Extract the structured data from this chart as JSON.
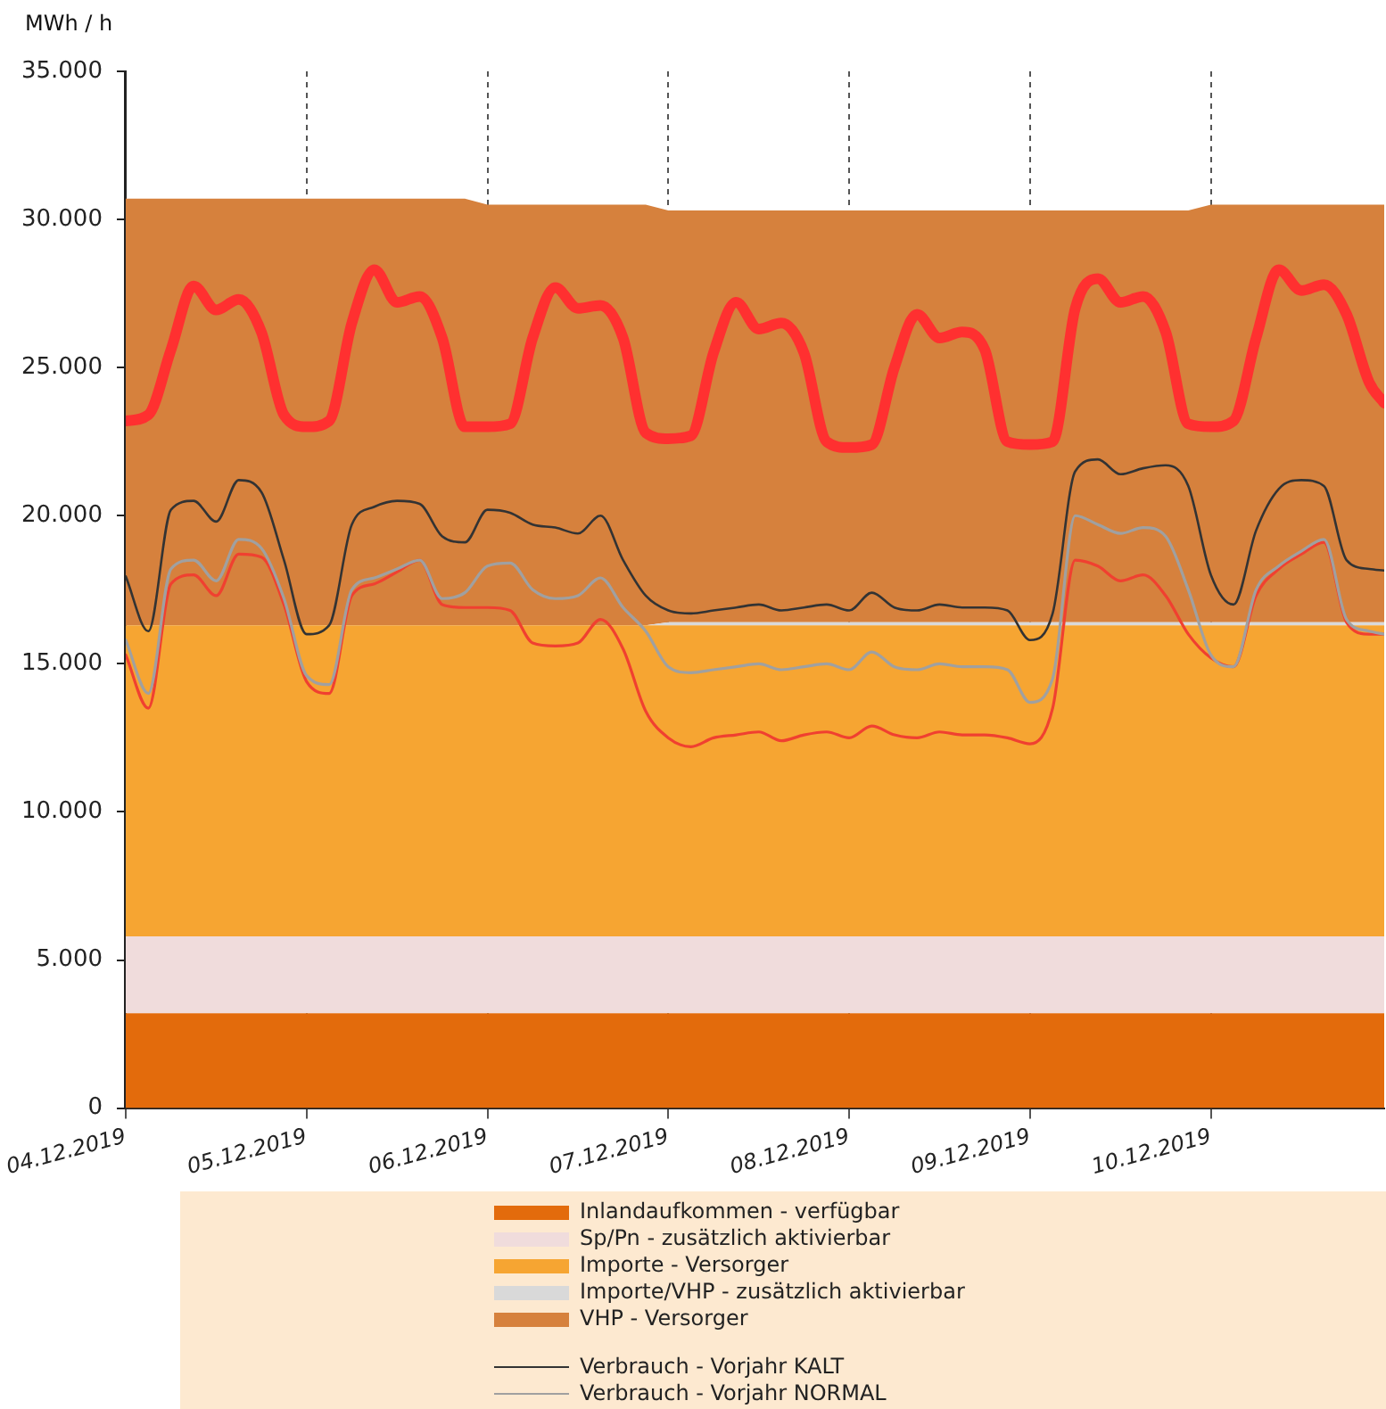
{
  "chart_data": {
    "type": "area",
    "ylabel": "MWh / h",
    "stacked": true,
    "grid": "x",
    "legend": "bottom",
    "x": [
      "2019-12-04T00:00",
      "2019-12-04T03:00",
      "2019-12-04T06:00",
      "2019-12-04T09:00",
      "2019-12-04T12:00",
      "2019-12-04T15:00",
      "2019-12-04T18:00",
      "2019-12-04T21:00",
      "2019-12-05T00:00",
      "2019-12-05T03:00",
      "2019-12-05T06:00",
      "2019-12-05T09:00",
      "2019-12-05T12:00",
      "2019-12-05T15:00",
      "2019-12-05T18:00",
      "2019-12-05T21:00",
      "2019-12-06T00:00",
      "2019-12-06T03:00",
      "2019-12-06T06:00",
      "2019-12-06T09:00",
      "2019-12-06T12:00",
      "2019-12-06T15:00",
      "2019-12-06T18:00",
      "2019-12-06T21:00",
      "2019-12-07T00:00",
      "2019-12-07T03:00",
      "2019-12-07T06:00",
      "2019-12-07T09:00",
      "2019-12-07T12:00",
      "2019-12-07T15:00",
      "2019-12-07T18:00",
      "2019-12-07T21:00",
      "2019-12-08T00:00",
      "2019-12-08T03:00",
      "2019-12-08T06:00",
      "2019-12-08T09:00",
      "2019-12-08T12:00",
      "2019-12-08T15:00",
      "2019-12-08T18:00",
      "2019-12-08T21:00",
      "2019-12-09T00:00",
      "2019-12-09T03:00",
      "2019-12-09T06:00",
      "2019-12-09T09:00",
      "2019-12-09T12:00",
      "2019-12-09T15:00",
      "2019-12-09T18:00",
      "2019-12-09T21:00",
      "2019-12-10T00:00",
      "2019-12-10T03:00",
      "2019-12-10T06:00",
      "2019-12-10T09:00",
      "2019-12-10T12:00",
      "2019-12-10T15:00",
      "2019-12-10T18:00",
      "2019-12-10T21:00",
      "2019-12-10T23:00"
    ],
    "xlim": [
      "2019-12-04T00:00",
      "2019-12-10T23:00"
    ],
    "xticks": [
      {
        "value": "2019-12-04T00:00",
        "label": "04.12.2019"
      },
      {
        "value": "2019-12-05T00:00",
        "label": "05.12.2019"
      },
      {
        "value": "2019-12-06T00:00",
        "label": "06.12.2019"
      },
      {
        "value": "2019-12-07T00:00",
        "label": "07.12.2019"
      },
      {
        "value": "2019-12-08T00:00",
        "label": "08.12.2019"
      },
      {
        "value": "2019-12-09T00:00",
        "label": "09.12.2019"
      },
      {
        "value": "2019-12-10T00:00",
        "label": "10.12.2019"
      }
    ],
    "ylim": [
      0,
      35000
    ],
    "yticks": [
      0,
      {
        "value": 5000,
        "label": "5.000"
      },
      {
        "value": 10000,
        "label": "10.000"
      },
      {
        "value": 15000,
        "label": "15.000"
      },
      {
        "value": 20000,
        "label": "20.000"
      },
      {
        "value": 25000,
        "label": "25.000"
      },
      {
        "value": 30000,
        "label": "30.000"
      },
      {
        "value": 35000,
        "label": "35.000"
      }
    ],
    "series": [
      {
        "name": "Inlandaufkommen - verfügbar",
        "color": "#e36b0c",
        "values": [
          3200,
          3200,
          3200,
          3200,
          3200,
          3200,
          3200,
          3200,
          3200,
          3200,
          3200,
          3200,
          3200,
          3200,
          3200,
          3200,
          3200,
          3200,
          3200,
          3200,
          3200,
          3200,
          3200,
          3200,
          3200,
          3200,
          3200,
          3200,
          3200,
          3200,
          3200,
          3200,
          3200,
          3200,
          3200,
          3200,
          3200,
          3200,
          3200,
          3200,
          3200,
          3200,
          3200,
          3200,
          3200,
          3200,
          3200,
          3200,
          3200,
          3200,
          3200,
          3200,
          3200,
          3200,
          3200,
          3200,
          3200
        ]
      },
      {
        "name": "Sp/Pn - zusätzlich aktivierbar",
        "color": "#f0dcdc",
        "values": [
          2600,
          2600,
          2600,
          2600,
          2600,
          2600,
          2600,
          2600,
          2600,
          2600,
          2600,
          2600,
          2600,
          2600,
          2600,
          2600,
          2600,
          2600,
          2600,
          2600,
          2600,
          2600,
          2600,
          2600,
          2600,
          2600,
          2600,
          2600,
          2600,
          2600,
          2600,
          2600,
          2600,
          2600,
          2600,
          2600,
          2600,
          2600,
          2600,
          2600,
          2600,
          2600,
          2600,
          2600,
          2600,
          2600,
          2600,
          2600,
          2600,
          2600,
          2600,
          2600,
          2600,
          2600,
          2600,
          2600,
          2600
        ]
      },
      {
        "name": "Importe - Versorger",
        "color": "#f6a532",
        "values": [
          10500,
          10500,
          10500,
          10500,
          10500,
          10500,
          10500,
          10500,
          10500,
          10500,
          10500,
          10500,
          10500,
          10500,
          10500,
          10500,
          10500,
          10500,
          10500,
          10500,
          10500,
          10500,
          10500,
          10500,
          10500,
          10500,
          10500,
          10500,
          10500,
          10500,
          10500,
          10500,
          10500,
          10500,
          10500,
          10500,
          10500,
          10500,
          10500,
          10500,
          10500,
          10500,
          10500,
          10500,
          10500,
          10500,
          10500,
          10500,
          10500,
          10500,
          10500,
          10500,
          10500,
          10500,
          10500,
          10500,
          10500
        ]
      },
      {
        "name": "Importe/VHP - zusätzlich aktivierbar",
        "color": "#d9d9d9",
        "values": [
          0,
          0,
          0,
          0,
          0,
          0,
          0,
          0,
          0,
          0,
          0,
          0,
          0,
          0,
          0,
          0,
          0,
          0,
          0,
          0,
          0,
          0,
          0,
          0,
          100,
          100,
          100,
          100,
          100,
          100,
          100,
          100,
          100,
          100,
          100,
          100,
          100,
          100,
          100,
          100,
          100,
          100,
          100,
          100,
          100,
          100,
          100,
          100,
          100,
          100,
          100,
          100,
          100,
          100,
          100,
          100,
          100
        ]
      },
      {
        "name": "VHP - Versorger",
        "color": "#d6813d",
        "values": [
          14400,
          14400,
          14400,
          14400,
          14400,
          14400,
          14400,
          14400,
          14400,
          14400,
          14400,
          14400,
          14400,
          14400,
          14400,
          14400,
          14200,
          14200,
          14200,
          14200,
          14200,
          14200,
          14200,
          14200,
          13900,
          13900,
          13900,
          13900,
          13900,
          13900,
          13900,
          13900,
          13900,
          13900,
          13900,
          13900,
          13900,
          13900,
          13900,
          13900,
          13900,
          13900,
          13900,
          13900,
          13900,
          13900,
          13900,
          13900,
          14100,
          14100,
          14100,
          14100,
          14100,
          14100,
          14100,
          14100,
          14100
        ]
      },
      {
        "type": "line",
        "color": "#ff3030",
        "values": [
          23200,
          23400,
          25600,
          27750,
          26950,
          27300,
          26200,
          23400,
          23000,
          23200,
          26500,
          28300,
          27200,
          27400,
          26000,
          23000,
          23000,
          23100,
          26000,
          27700,
          27000,
          27100,
          26000,
          22800,
          22600,
          22700,
          25500,
          27200,
          26300,
          26500,
          25500,
          22500,
          22300,
          22400,
          25000,
          26800,
          26000,
          26200,
          25600,
          22500,
          22400,
          22500,
          27000,
          28000,
          27200,
          27400,
          26200,
          23100,
          23000,
          23200,
          26000,
          28300,
          27600,
          27800,
          26800,
          24500,
          23800
        ]
      },
      {
        "name": "Verbrauch - Vorjahr KALT",
        "type": "line",
        "color": "#333333",
        "values": [
          17950,
          16100,
          20200,
          20500,
          19800,
          21200,
          20800,
          18500,
          16000,
          16300,
          19700,
          20300,
          20500,
          20400,
          19300,
          19100,
          20200,
          20100,
          19700,
          19600,
          19400,
          20000,
          18500,
          17300,
          16800,
          16700,
          16800,
          16900,
          17000,
          16800,
          16900,
          17000,
          16800,
          17400,
          16900,
          16800,
          17000,
          16900,
          16900,
          16800,
          15800,
          16700,
          21500,
          21900,
          21400,
          21600,
          21700,
          21000,
          18000,
          17000,
          19500,
          20900,
          21200,
          21000,
          18500,
          18200,
          18150
        ]
      },
      {
        "name": "Verbrauch - Vorjahr NORMAL",
        "type": "line",
        "color": "#a0a0a0",
        "values": [
          15800,
          14000,
          18200,
          18500,
          17800,
          19200,
          18900,
          17200,
          14600,
          14300,
          17500,
          17900,
          18200,
          18500,
          17200,
          17400,
          18300,
          18400,
          17500,
          17200,
          17300,
          17900,
          16900,
          16100,
          14900,
          14700,
          14800,
          14900,
          15000,
          14800,
          14900,
          15000,
          14800,
          15400,
          14900,
          14800,
          15000,
          14900,
          14900,
          14800,
          13700,
          14500,
          20000,
          19700,
          19400,
          19600,
          19300,
          17500,
          15300,
          14900,
          17500,
          18300,
          18800,
          19200,
          16500,
          16100,
          16000
        ]
      },
      {
        "type": "line",
        "color": "#f04030",
        "values": [
          15300,
          13500,
          17700,
          18000,
          17300,
          18700,
          18600,
          17000,
          14400,
          14000,
          17300,
          17700,
          18100,
          18500,
          17000,
          16900,
          16900,
          16800,
          15700,
          15600,
          15700,
          16500,
          15500,
          13400,
          12500,
          12200,
          12500,
          12600,
          12700,
          12400,
          12600,
          12700,
          12500,
          12900,
          12600,
          12500,
          12700,
          12600,
          12600,
          12500,
          12300,
          13500,
          18500,
          18300,
          17800,
          18000,
          17300,
          16000,
          15200,
          14900,
          17300,
          18200,
          18700,
          19100,
          16400,
          16000,
          16000
        ]
      }
    ]
  }
}
